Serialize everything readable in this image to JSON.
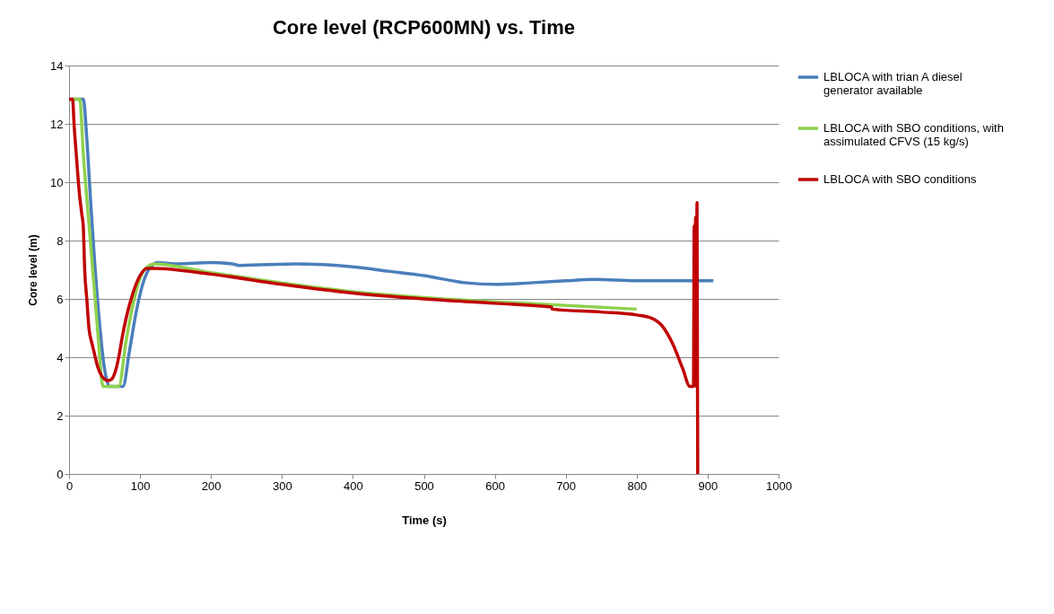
{
  "chart_data": {
    "type": "line",
    "title": "Core level (RCP600MN) vs. Time",
    "xlabel": "Time (s)",
    "ylabel": "Core level (m)",
    "xlim": [
      0,
      1000
    ],
    "xticks": [
      0,
      100,
      200,
      300,
      400,
      500,
      600,
      700,
      800,
      900,
      1000
    ],
    "ylim": [
      0,
      14
    ],
    "yticks": [
      0,
      2,
      4,
      6,
      8,
      10,
      12,
      14
    ],
    "grid": "y",
    "legend": "right",
    "marker": "none",
    "line_style": "solid",
    "series": [
      {
        "name": "LBLOCA with trian A diesel generator available",
        "color": "#4a7ebb",
        "x": [
          0,
          20,
          25,
          30,
          40,
          50,
          57,
          76,
          85,
          95,
          105,
          115,
          125,
          150,
          200,
          230,
          240,
          320,
          400,
          450,
          500,
          560,
          600,
          650,
          700,
          740,
          800,
          850,
          908
        ],
        "values": [
          12.85,
          12.85,
          11.5,
          9.5,
          6,
          3.6,
          3,
          3,
          4.2,
          5.6,
          6.6,
          7.1,
          7.25,
          7.2,
          7.25,
          7.2,
          7.15,
          7.2,
          7.1,
          6.95,
          6.8,
          6.55,
          6.5,
          6.55,
          6.62,
          6.67,
          6.62,
          6.62,
          6.62
        ]
      },
      {
        "name": "LBLOCA with SBO conditions, with assimulated CFVS (15 kg/s)",
        "color": "#8ed14d",
        "x": [
          0,
          15,
          20,
          30,
          40,
          48,
          70,
          80,
          90,
          100,
          110,
          120,
          200,
          300,
          400,
          500,
          600,
          700,
          800
        ],
        "values": [
          12.85,
          12.85,
          11,
          8,
          5,
          3,
          3,
          4.5,
          5.8,
          6.7,
          7.1,
          7.2,
          6.9,
          6.55,
          6.25,
          6.05,
          5.9,
          5.78,
          5.65
        ]
      },
      {
        "name": "LBLOCA with SBO conditions",
        "color": "#c00000",
        "x": [
          0,
          5,
          7,
          10,
          15,
          18,
          20,
          22,
          25,
          28,
          32,
          35,
          40,
          45,
          50,
          55,
          60,
          65,
          70,
          75,
          80,
          90,
          100,
          110,
          120,
          200,
          300,
          400,
          500,
          600,
          680,
          681,
          750,
          800,
          820,
          835,
          850,
          865,
          875,
          880,
          881,
          882,
          883,
          884,
          885,
          886
        ],
        "values": [
          12.85,
          12.85,
          12,
          11,
          9.5,
          8.9,
          8.5,
          7,
          6,
          5,
          4.5,
          4.2,
          3.7,
          3.4,
          3.25,
          3.2,
          3.25,
          3.5,
          4,
          4.7,
          5.3,
          6.2,
          6.8,
          7.05,
          7.05,
          6.85,
          6.5,
          6.2,
          6,
          5.85,
          5.72,
          5.65,
          5.55,
          5.45,
          5.35,
          5.1,
          4.5,
          3.6,
          3,
          3,
          8.5,
          3.5,
          8.8,
          3,
          9.3,
          0
        ]
      }
    ]
  }
}
